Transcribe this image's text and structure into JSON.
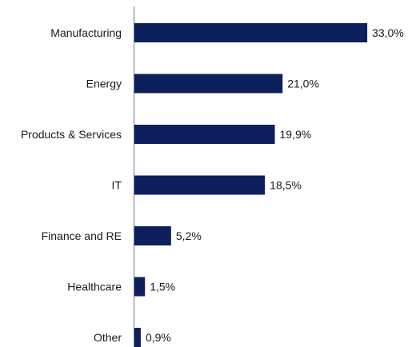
{
  "chart_data": {
    "type": "bar",
    "orientation": "horizontal",
    "categories": [
      "Manufacturing",
      "Energy",
      "Products & Services",
      "IT",
      "Finance and RE",
      "Healthcare",
      "Other"
    ],
    "values": [
      33.0,
      21.0,
      19.9,
      18.5,
      5.2,
      1.5,
      0.9
    ],
    "value_labels": [
      "33,0%",
      "21,0%",
      "19,9%",
      "18,5%",
      "5,2%",
      "1,5%",
      "0,9%"
    ],
    "unit": "%",
    "grid": false,
    "legend": "none",
    "bar_color": "#0d1f5c",
    "axis_color": "#6b7a99"
  }
}
